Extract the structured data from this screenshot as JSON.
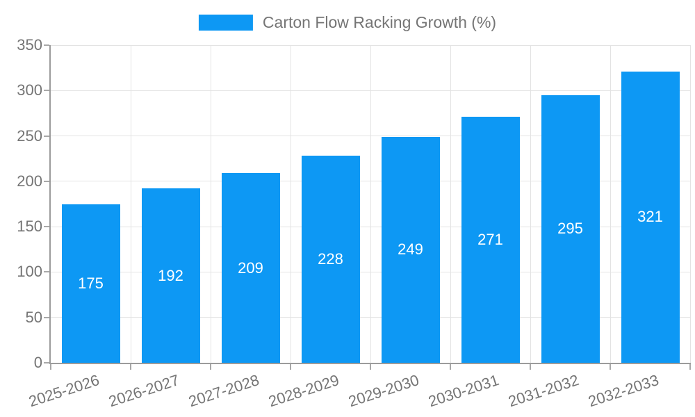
{
  "chart_data": {
    "type": "bar",
    "title": "Carton Flow Racking Growth (%)",
    "legend": {
      "label": "Carton Flow Racking Growth (%)",
      "position": "top"
    },
    "categories": [
      "2025-2026",
      "2026-2027",
      "2027-2028",
      "2028-2029",
      "2029-2030",
      "2030-2031",
      "2031-2032",
      "2032-2033"
    ],
    "values": [
      175,
      192,
      209,
      228,
      249,
      271,
      295,
      321
    ],
    "xlabel": "",
    "ylabel": "",
    "ylim": [
      0,
      350
    ],
    "yticks": [
      0,
      50,
      100,
      150,
      200,
      250,
      300,
      350
    ],
    "grid": true,
    "x_label_rotation_deg": -18,
    "colors": {
      "bar": "#0d98f4",
      "value_label": "#ffffff",
      "tick_label": "#757575",
      "legend_label": "#757575",
      "gridline": "#e3e3e3",
      "axis_line": "#9b9b9b",
      "tick_mark": "#a8a8a8",
      "background": "#ffffff"
    }
  }
}
